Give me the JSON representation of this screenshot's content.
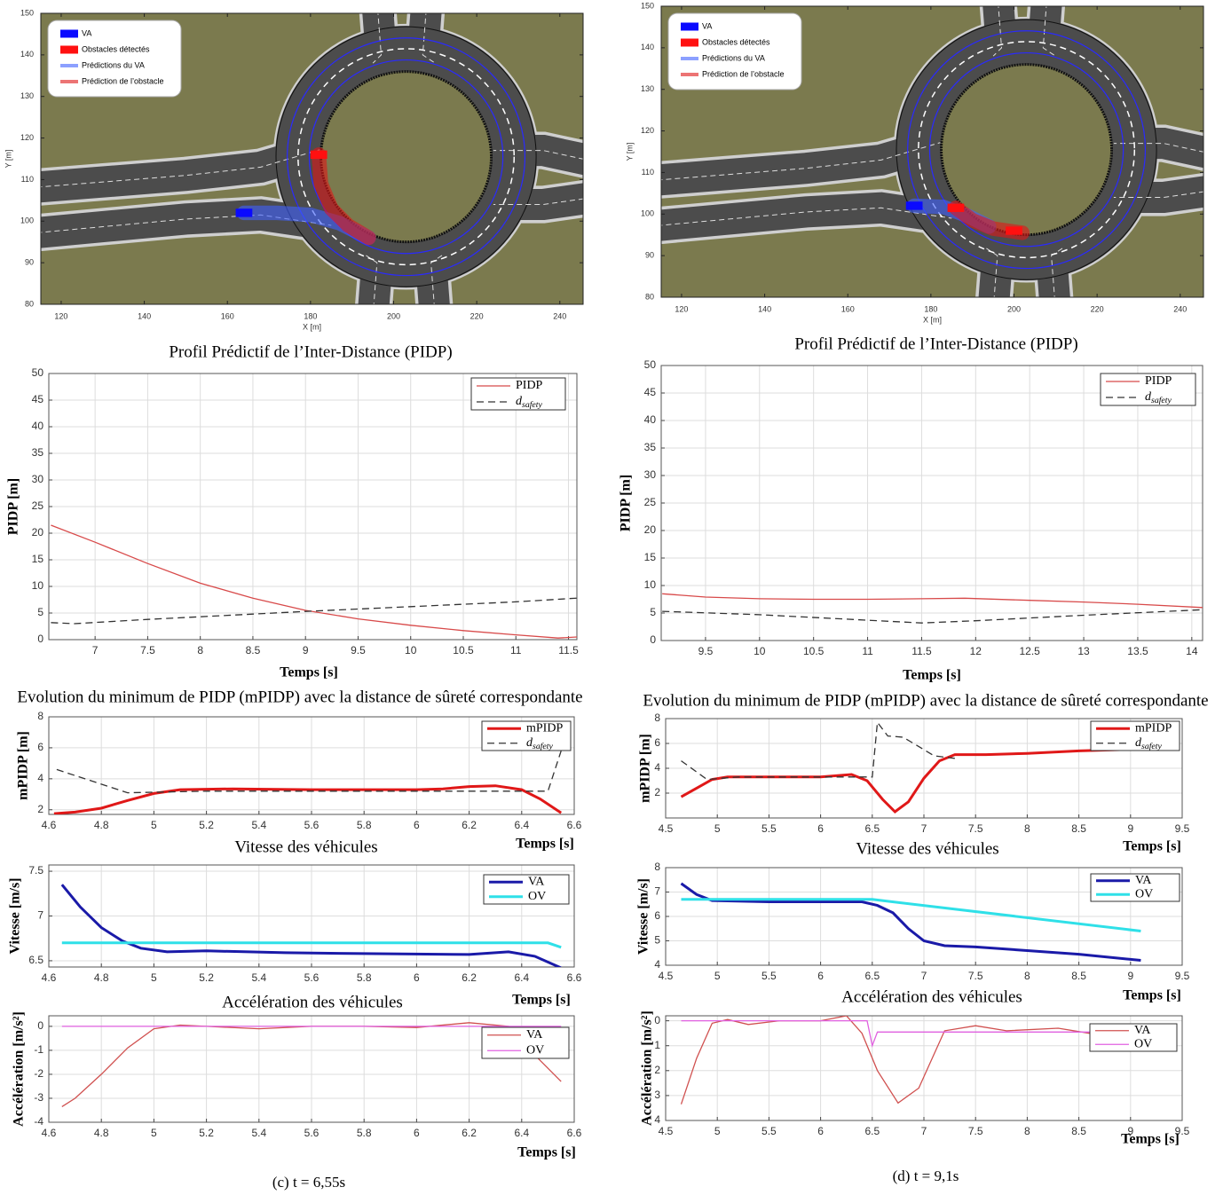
{
  "chart_data": [
    {
      "type": "trajectory",
      "xlabel": "X [m]",
      "ylabel": "Y [m]",
      "xlim": [
        115.1,
        245.6
      ],
      "ylim": [
        80,
        150
      ],
      "xticks": [
        120,
        140,
        160,
        180,
        200,
        220,
        240
      ],
      "yticks": [
        80,
        90,
        100,
        110,
        120,
        130,
        140,
        150
      ],
      "legend": "upper left",
      "series": [
        {
          "name": "VA",
          "color": "#0a0aff",
          "style": "marker",
          "x": [
            164
          ],
          "values": [
            102
          ]
        },
        {
          "name": "Obstacles détectés",
          "color": "#ff1010",
          "style": "marker",
          "x": [
            182
          ],
          "values": [
            116
          ]
        },
        {
          "name": "Prédictions du VA",
          "color": "#4060ff",
          "style": "line",
          "x": [
            164,
            172,
            180,
            187,
            194
          ],
          "values": [
            102,
            102,
            101.5,
            99.5,
            96
          ]
        },
        {
          "name": "Prédiction de l’obstacle",
          "color": "#e01818",
          "style": "line",
          "x": [
            182,
            182.5,
            185,
            189,
            194
          ],
          "values": [
            116,
            109,
            103,
            99,
            96
          ]
        }
      ]
    },
    {
      "type": "line",
      "title": "Profil Prédictif de l’Inter-Distance (PIDP)",
      "xlabel": "Temps [s]",
      "ylabel": "PIDP [m]",
      "xlim": [
        6.56,
        11.58
      ],
      "ylim": [
        0,
        50
      ],
      "xticks": [
        7,
        7.5,
        8,
        8.5,
        9,
        9.5,
        10,
        10.5,
        11,
        11.5
      ],
      "yticks": [
        0,
        5,
        10,
        15,
        20,
        25,
        30,
        35,
        40,
        45,
        50
      ],
      "grid": true,
      "legend": "upper right",
      "series": [
        {
          "name": "PIDP",
          "color": "#d84a4a",
          "linewidth": 1.3,
          "x": [
            6.58,
            7,
            7.5,
            8,
            8.5,
            9,
            9.5,
            10,
            10.5,
            11,
            11.4,
            11.58
          ],
          "values": [
            21.5,
            18.3,
            14.3,
            10.6,
            7.8,
            5.5,
            3.9,
            2.7,
            1.7,
            0.9,
            0.3,
            0.5
          ]
        },
        {
          "name": "d_safety",
          "color": "#333333",
          "linewidth": 1.3,
          "linestyle": "dashed",
          "x": [
            6.58,
            6.8,
            7.5,
            8.5,
            9,
            10,
            11,
            11.58
          ],
          "values": [
            3.2,
            3.0,
            3.8,
            4.8,
            5.3,
            6.2,
            7.1,
            7.8
          ]
        }
      ]
    },
    {
      "type": "line",
      "title": "Evolution du minimum de PIDP (mPIDP) avec la distance de sûreté correspondante",
      "xlabel": "Temps [s]",
      "ylabel": "mPIDP [m]",
      "xlim": [
        4.6,
        6.6
      ],
      "ylim": [
        1.7,
        8
      ],
      "xticks": [
        4.6,
        4.8,
        5,
        5.2,
        5.4,
        5.6,
        5.8,
        6,
        6.2,
        6.4,
        6.6
      ],
      "yticks": [
        2,
        4,
        6,
        8
      ],
      "grid": true,
      "legend": "upper right",
      "series": [
        {
          "name": "mPIDP",
          "color": "#e01818",
          "linewidth": 3,
          "x": [
            4.62,
            4.7,
            4.8,
            4.9,
            5,
            5.1,
            5.3,
            5.6,
            6,
            6.1,
            6.2,
            6.3,
            6.4,
            6.47,
            6.55
          ],
          "values": [
            1.75,
            1.85,
            2.1,
            2.6,
            3.05,
            3.3,
            3.35,
            3.3,
            3.3,
            3.35,
            3.5,
            3.55,
            3.3,
            2.7,
            1.8
          ]
        },
        {
          "name": "d_safety",
          "color": "#333333",
          "linewidth": 1.3,
          "linestyle": "dashed",
          "x": [
            4.63,
            4.9,
            5.2,
            6,
            6.5,
            6.55
          ],
          "values": [
            4.6,
            3.1,
            3.2,
            3.2,
            3.2,
            5.8
          ]
        }
      ]
    },
    {
      "type": "line",
      "title": "Vitesse des véhicules",
      "xlabel": "Temps [s]",
      "ylabel": "Vitesse [m/s]",
      "xlim": [
        4.6,
        6.6
      ],
      "ylim": [
        6.43,
        7.57
      ],
      "xticks": [
        4.6,
        4.8,
        5,
        5.2,
        5.4,
        5.6,
        5.8,
        6,
        6.2,
        6.4,
        6.6
      ],
      "yticks": [
        6.5,
        7,
        7.5
      ],
      "grid": true,
      "legend": "upper right",
      "series": [
        {
          "name": "VA",
          "color": "#1a1aa8",
          "linewidth": 3,
          "x": [
            4.65,
            4.72,
            4.8,
            4.88,
            4.95,
            5.05,
            5.2,
            5.5,
            5.8,
            6.2,
            6.35,
            6.45,
            6.55
          ],
          "values": [
            7.35,
            7.1,
            6.87,
            6.72,
            6.64,
            6.6,
            6.61,
            6.59,
            6.58,
            6.57,
            6.6,
            6.55,
            6.42
          ]
        },
        {
          "name": "OV",
          "color": "#2fe0e8",
          "linewidth": 3,
          "x": [
            4.65,
            6.5,
            6.55
          ],
          "values": [
            6.7,
            6.7,
            6.65
          ]
        }
      ]
    },
    {
      "type": "line",
      "title": "Accélération des véhicules",
      "xlabel": "Temps [s]",
      "ylabel": "Accélération [m/s²]",
      "xlim": [
        4.6,
        6.6
      ],
      "ylim": [
        -4,
        0.44
      ],
      "xticks": [
        4.6,
        4.8,
        5,
        5.2,
        5.4,
        5.6,
        5.8,
        6,
        6.2,
        6.4,
        6.6
      ],
      "yticks": [
        0,
        -1,
        -2,
        -3,
        -4
      ],
      "grid": true,
      "legend": "upper right",
      "series": [
        {
          "name": "VA",
          "color": "#d0504f",
          "linewidth": 1.3,
          "x": [
            4.65,
            4.7,
            4.8,
            4.9,
            5,
            5.1,
            5.2,
            5.4,
            5.6,
            5.8,
            6,
            6.2,
            6.35,
            6.45,
            6.55
          ],
          "values": [
            -3.35,
            -3.0,
            -2.0,
            -0.9,
            -0.1,
            0.05,
            0,
            -0.1,
            0,
            0,
            -0.05,
            0.15,
            0,
            -1.2,
            -2.3
          ]
        },
        {
          "name": "OV",
          "color": "#e060e0",
          "linewidth": 1.3,
          "x": [
            4.65,
            6.55
          ],
          "values": [
            0,
            0
          ]
        }
      ]
    },
    {
      "type": "trajectory",
      "xlabel": "X [m]",
      "ylabel": "Y [m]",
      "xlim": [
        115.1,
        245.6
      ],
      "ylim": [
        80,
        150
      ],
      "xticks": [
        120,
        140,
        160,
        180,
        200,
        220,
        240
      ],
      "yticks": [
        80,
        90,
        100,
        110,
        120,
        130,
        140,
        150
      ],
      "legend": "upper left",
      "series": [
        {
          "name": "VA",
          "color": "#0a0aff",
          "style": "marker",
          "x": [
            176
          ],
          "values": [
            102
          ]
        },
        {
          "name": "Obstacles détectés",
          "color": "#ff1010",
          "style": "marker",
          "x": [
            186,
            200
          ],
          "values": [
            101.5,
            96
          ]
        },
        {
          "name": "Prédictions du VA",
          "color": "#4060ff",
          "style": "line",
          "x": [
            176,
            183,
            189,
            194
          ],
          "values": [
            102,
            101.7,
            99.5,
            97
          ]
        },
        {
          "name": "Prédiction de l’obstacle",
          "color": "#e01818",
          "style": "line",
          "x": [
            186,
            190,
            195,
            202
          ],
          "values": [
            101.5,
            98.5,
            96.5,
            95.5
          ]
        }
      ]
    },
    {
      "type": "line",
      "title": "Profil Prédictif de l’Inter-Distance (PIDP)",
      "xlabel": "Temps [s]",
      "ylabel": "PIDP [m]",
      "xlim": [
        9.09,
        14.1
      ],
      "ylim": [
        0,
        50
      ],
      "xticks": [
        9.5,
        10,
        10.5,
        11,
        11.5,
        12,
        12.5,
        13,
        13.5,
        14
      ],
      "yticks": [
        0,
        5,
        10,
        15,
        20,
        25,
        30,
        35,
        40,
        45,
        50
      ],
      "grid": true,
      "legend": "upper right",
      "series": [
        {
          "name": "PIDP",
          "color": "#d84a4a",
          "linewidth": 1.3,
          "x": [
            9.1,
            9.5,
            10,
            10.5,
            11,
            11.5,
            11.9,
            12.5,
            13,
            13.5,
            14.1
          ],
          "values": [
            8.5,
            7.9,
            7.6,
            7.5,
            7.5,
            7.6,
            7.7,
            7.3,
            7.0,
            6.6,
            6.0
          ]
        },
        {
          "name": "d_safety",
          "color": "#333333",
          "linewidth": 1.3,
          "linestyle": "dashed",
          "x": [
            9.1,
            10,
            11,
            11.5,
            12,
            13,
            14.1
          ],
          "values": [
            5.3,
            4.7,
            3.7,
            3.2,
            3.6,
            4.6,
            5.6
          ]
        }
      ]
    },
    {
      "type": "line",
      "title": "Evolution du minimum de PIDP (mPIDP) avec la distance de sûreté correspondante",
      "xlabel": "Temps [s]",
      "ylabel": "mPIDP [m]",
      "xlim": [
        4.5,
        9.5
      ],
      "ylim": [
        0,
        8
      ],
      "xticks": [
        4.5,
        5,
        5.5,
        6,
        6.5,
        7,
        7.5,
        8,
        8.5,
        9,
        9.5
      ],
      "yticks": [
        2,
        4,
        6,
        8
      ],
      "grid": true,
      "legend": "upper right",
      "series": [
        {
          "name": "mPIDP",
          "color": "#e01818",
          "linewidth": 3,
          "x": [
            4.65,
            4.8,
            4.95,
            5.1,
            5.5,
            6,
            6.3,
            6.45,
            6.6,
            6.72,
            6.85,
            7,
            7.15,
            7.3,
            7.6,
            8,
            8.5,
            8.9
          ],
          "values": [
            1.7,
            2.4,
            3.1,
            3.3,
            3.3,
            3.3,
            3.5,
            3.0,
            1.5,
            0.5,
            1.3,
            3.2,
            4.6,
            5.1,
            5.1,
            5.2,
            5.4,
            5.5
          ]
        },
        {
          "name": "d_safety",
          "color": "#333333",
          "linewidth": 1.3,
          "linestyle": "dashed",
          "x": [
            4.65,
            4.9,
            5.2,
            6,
            6.5,
            6.55,
            6.65,
            6.8,
            7.1,
            7.3
          ],
          "values": [
            4.6,
            3.1,
            3.3,
            3.3,
            3.3,
            7.7,
            6.6,
            6.5,
            5.0,
            4.8
          ]
        }
      ]
    },
    {
      "type": "line",
      "title": "Vitesse des véhicules",
      "xlabel": "Temps [s]",
      "ylabel": "Vitesse [m/s]",
      "xlim": [
        4.5,
        9.5
      ],
      "ylim": [
        4,
        8
      ],
      "xticks": [
        4.5,
        5,
        5.5,
        6,
        6.5,
        7,
        7.5,
        8,
        8.5,
        9,
        9.5
      ],
      "yticks": [
        4,
        5,
        6,
        7,
        8
      ],
      "grid": true,
      "legend": "upper right",
      "series": [
        {
          "name": "VA",
          "color": "#1a1aa8",
          "linewidth": 3,
          "x": [
            4.65,
            4.8,
            4.95,
            5.5,
            6,
            6.4,
            6.55,
            6.7,
            6.85,
            7,
            7.2,
            7.5,
            8,
            8.5,
            9.1
          ],
          "values": [
            7.35,
            6.9,
            6.65,
            6.6,
            6.6,
            6.6,
            6.45,
            6.15,
            5.5,
            5.0,
            4.8,
            4.75,
            4.6,
            4.45,
            4.2
          ]
        },
        {
          "name": "OV",
          "color": "#2fe0e8",
          "linewidth": 3,
          "x": [
            4.65,
            6.5,
            9.1
          ],
          "values": [
            6.7,
            6.7,
            5.4
          ]
        }
      ]
    },
    {
      "type": "line",
      "title": "Accélération des véhicules",
      "xlabel": "Temps [s]",
      "ylabel": "Accélération [m/s²]",
      "xlim": [
        4.5,
        9.5
      ],
      "ylim": [
        -4,
        0.2
      ],
      "xticks": [
        4.5,
        5,
        5.5,
        6,
        6.5,
        7,
        7.5,
        8,
        8.5,
        9,
        9.5
      ],
      "yticks": [
        0,
        {
          "value": -1,
          "label": "1"
        },
        {
          "value": -2,
          "label": "2"
        },
        {
          "value": -3,
          "label": "3"
        },
        {
          "value": -4,
          "label": "4"
        }
      ],
      "grid": true,
      "legend": "upper right",
      "series": [
        {
          "name": "VA",
          "color": "#d0504f",
          "linewidth": 1.3,
          "x": [
            4.65,
            4.8,
            4.95,
            5.1,
            5.3,
            5.6,
            6,
            6.25,
            6.4,
            6.55,
            6.75,
            6.95,
            7.2,
            7.5,
            7.8,
            8.3,
            8.6,
            8.9
          ],
          "values": [
            -3.35,
            -1.5,
            -0.1,
            0.05,
            -0.15,
            0,
            0,
            0.2,
            -0.5,
            -2.0,
            -3.3,
            -2.7,
            -0.4,
            -0.2,
            -0.4,
            -0.3,
            -0.5,
            -0.3
          ]
        },
        {
          "name": "OV",
          "color": "#e060e0",
          "linewidth": 1.3,
          "x": [
            4.65,
            6.45,
            6.5,
            6.55,
            9.1
          ],
          "values": [
            0,
            0,
            -1,
            -0.45,
            -0.45
          ]
        }
      ]
    }
  ],
  "captions": [
    "(c) t = 6,55s",
    "(d) t = 9,1s"
  ]
}
